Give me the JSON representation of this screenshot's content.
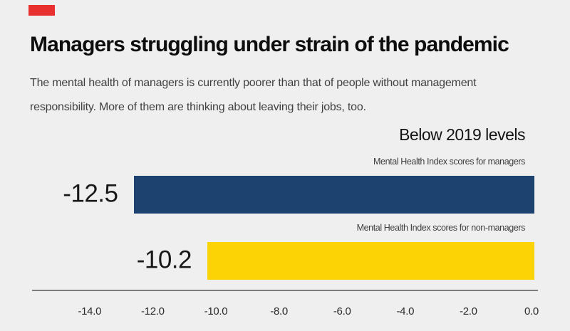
{
  "page": {
    "background_color": "#efefef"
  },
  "brand": {
    "mark_color": "#e8312e"
  },
  "header": {
    "title": "Managers struggling under strain of the pandemic",
    "subtitle_line1": "The mental health of managers is currently poorer than that of people without management",
    "subtitle_line2": "responsibility. More of them are thinking about leaving their jobs, too."
  },
  "chart_data": {
    "type": "bar",
    "orientation": "horizontal",
    "title": "Below 2019 levels",
    "categories": [
      "Mental Health Index scores for managers",
      "Mental Health Index scores for non-managers"
    ],
    "values": [
      -12.5,
      -10.2
    ],
    "value_labels": [
      "-12.5",
      "-10.2"
    ],
    "bar_colors": [
      "#1e4270",
      "#fcd405"
    ],
    "xlabel": "",
    "ylabel": "",
    "xlim": [
      -16,
      0
    ],
    "x_ticks": [
      -14.0,
      -12.0,
      -10.0,
      -8.0,
      -6.0,
      -4.0,
      -2.0,
      0.0
    ],
    "x_tick_labels": [
      "-14.0",
      "-12.0",
      "-10.0",
      "-8.0",
      "-6.0",
      "-4.0",
      "-2.0",
      "0.0"
    ],
    "grid": false,
    "legend": "none",
    "axis_line_color": "#7d7d7d"
  }
}
